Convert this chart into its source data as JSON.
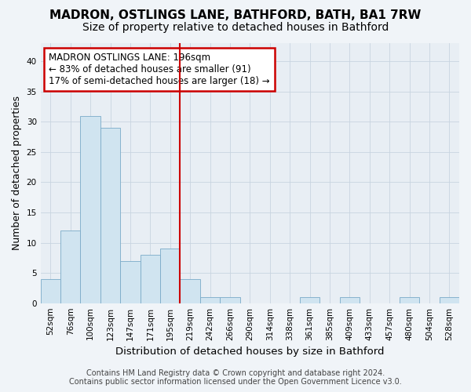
{
  "title": "MADRON, OSTLINGS LANE, BATHFORD, BATH, BA1 7RW",
  "subtitle": "Size of property relative to detached houses in Bathford",
  "xlabel": "Distribution of detached houses by size in Bathford",
  "ylabel": "Number of detached properties",
  "bar_labels": [
    "52sqm",
    "76sqm",
    "100sqm",
    "123sqm",
    "147sqm",
    "171sqm",
    "195sqm",
    "219sqm",
    "242sqm",
    "266sqm",
    "290sqm",
    "314sqm",
    "338sqm",
    "361sqm",
    "385sqm",
    "409sqm",
    "433sqm",
    "457sqm",
    "480sqm",
    "504sqm",
    "528sqm"
  ],
  "bar_values": [
    4,
    12,
    31,
    29,
    7,
    8,
    9,
    4,
    1,
    1,
    0,
    0,
    0,
    1,
    0,
    1,
    0,
    0,
    1,
    0,
    1
  ],
  "bar_color": "#d0e4f0",
  "bar_edge_color": "#7aaac8",
  "annotation_box_text": "MADRON OSTLINGS LANE: 196sqm\n← 83% of detached houses are smaller (91)\n17% of semi-detached houses are larger (18) →",
  "annotation_box_color": "#cc0000",
  "red_line_index": 6.5,
  "ylim": [
    0,
    43
  ],
  "yticks": [
    0,
    5,
    10,
    15,
    20,
    25,
    30,
    35,
    40
  ],
  "footer_line1": "Contains HM Land Registry data © Crown copyright and database right 2024.",
  "footer_line2": "Contains public sector information licensed under the Open Government Licence v3.0.",
  "background_color": "#f0f4f8",
  "plot_background_color": "#e8eef4",
  "grid_color": "#c8d4e0",
  "title_fontsize": 11,
  "subtitle_fontsize": 10,
  "xlabel_fontsize": 9.5,
  "ylabel_fontsize": 9,
  "tick_fontsize": 7.5,
  "annotation_fontsize": 8.5,
  "footer_fontsize": 7
}
